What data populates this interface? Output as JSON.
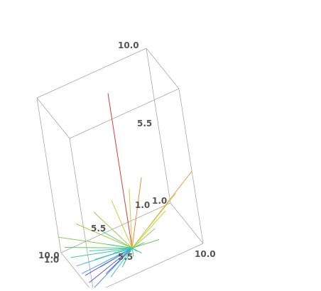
{
  "chart_data": {
    "type": "3d-line-field",
    "axes": {
      "x": {
        "ticks": [
          "1.0",
          "5.5",
          "10.0"
        ],
        "range": [
          1.0,
          10.0
        ]
      },
      "y": {
        "ticks": [
          "1.0",
          "5.5",
          "10.0"
        ],
        "range": [
          1.0,
          10.0
        ]
      },
      "z": {
        "ticks": [
          "1.0",
          "5.5",
          "10.0"
        ],
        "range": [
          1.0,
          10.0
        ]
      }
    },
    "grid": false,
    "legend": "none",
    "box_color": "#a8a8a8",
    "tick_label_color": "#555555",
    "origin": [
      5.5,
      5.5,
      1.0
    ],
    "segments": [
      {
        "dir": [
          0.0,
          0.0,
          9.0
        ],
        "color": "#d2413c"
      },
      {
        "dir": [
          4.5,
          -4.5,
          4.2
        ],
        "color": "#e8a050"
      },
      {
        "dir": [
          -4.2,
          -2.5,
          2.2
        ],
        "color": "#ee8a40"
      },
      {
        "dir": [
          4.5,
          -3.0,
          3.4
        ],
        "color": "#cfd050"
      },
      {
        "dir": [
          4.5,
          -2.0,
          2.7
        ],
        "color": "#b8d848"
      },
      {
        "dir": [
          4.5,
          -1.0,
          2.0
        ],
        "color": "#90d050"
      },
      {
        "dir": [
          4.5,
          0.0,
          1.5
        ],
        "color": "#60c860"
      },
      {
        "dir": [
          4.5,
          1.0,
          1.0
        ],
        "color": "#40c880"
      },
      {
        "dir": [
          4.5,
          2.0,
          0.7
        ],
        "color": "#40c8a8"
      },
      {
        "dir": [
          4.5,
          3.0,
          0.45
        ],
        "color": "#48c0d0"
      },
      {
        "dir": [
          4.5,
          4.5,
          0.25
        ],
        "color": "#5090e0"
      },
      {
        "dir": [
          3.5,
          4.5,
          0.35
        ],
        "color": "#6060e0"
      },
      {
        "dir": [
          2.5,
          4.5,
          0.5
        ],
        "color": "#6a4ad0"
      },
      {
        "dir": [
          -4.5,
          3.0,
          1.2
        ],
        "color": "#b0c840"
      },
      {
        "dir": [
          -4.5,
          4.5,
          0.9
        ],
        "color": "#88cc50"
      },
      {
        "dir": [
          -3.0,
          4.5,
          0.7
        ],
        "color": "#60c870"
      },
      {
        "dir": [
          -1.5,
          4.5,
          0.5
        ],
        "color": "#40c8a0"
      },
      {
        "dir": [
          0.0,
          4.5,
          0.4
        ],
        "color": "#40c0c8"
      },
      {
        "dir": [
          1.5,
          4.5,
          0.35
        ],
        "color": "#4aa8d8"
      },
      {
        "dir": [
          -4.5,
          1.5,
          1.4
        ],
        "color": "#a0cc48"
      },
      {
        "dir": [
          -4.5,
          0.0,
          1.6
        ],
        "color": "#c8d040"
      },
      {
        "dir": [
          -4.5,
          -1.5,
          1.8
        ],
        "color": "#d8c848"
      },
      {
        "dir": [
          -3.0,
          1.5,
          0.7
        ],
        "color": "#60c880"
      },
      {
        "dir": [
          -1.5,
          3.0,
          0.4
        ],
        "color": "#40c8b0"
      },
      {
        "dir": [
          0.0,
          3.0,
          0.3
        ],
        "color": "#40c0c8"
      },
      {
        "dir": [
          1.5,
          3.0,
          0.25
        ],
        "color": "#4898d8"
      },
      {
        "dir": [
          3.0,
          3.0,
          0.25
        ],
        "color": "#5070e0"
      },
      {
        "dir": [
          3.0,
          1.5,
          0.35
        ],
        "color": "#40c8a8"
      },
      {
        "dir": [
          3.0,
          0.0,
          0.5
        ],
        "color": "#40c880"
      },
      {
        "dir": [
          3.0,
          -1.5,
          0.8
        ],
        "color": "#70cc60"
      },
      {
        "dir": [
          1.5,
          1.5,
          0.2
        ],
        "color": "#40c8c0"
      },
      {
        "dir": [
          -1.5,
          1.5,
          0.3
        ],
        "color": "#40c8a0"
      },
      {
        "dir": [
          0.0,
          1.5,
          0.2
        ],
        "color": "#40c8b8"
      },
      {
        "dir": [
          1.5,
          0.0,
          0.2
        ],
        "color": "#40c8a0"
      }
    ]
  }
}
